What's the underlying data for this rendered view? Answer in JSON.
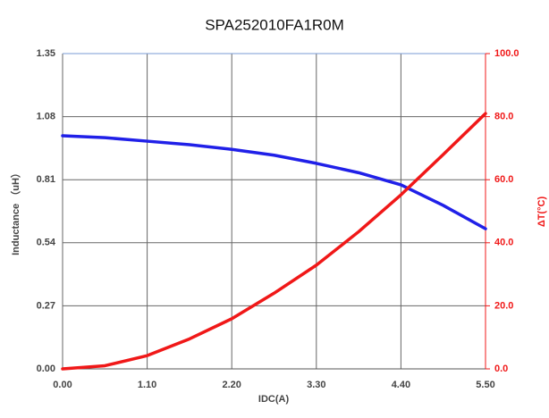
{
  "chart_data": {
    "type": "line",
    "title": "SPA252010FA1R0M",
    "x_label": "IDC(A)",
    "y_label": "Inductance （uH）",
    "y2_label": "ΔT(°C)",
    "x": [
      0,
      0.55,
      1.1,
      1.65,
      2.2,
      2.75,
      3.3,
      3.85,
      4.4,
      4.95,
      5.5
    ],
    "series": [
      {
        "name": "Inductance",
        "color": "#2020e8",
        "axis": "y",
        "values": [
          0.998,
          0.99,
          0.975,
          0.96,
          0.94,
          0.915,
          0.88,
          0.84,
          0.788,
          0.7,
          0.6
        ]
      },
      {
        "name": "ΔT",
        "color": "#f01818",
        "axis": "y2",
        "values": [
          0,
          1,
          4.2,
          9.5,
          15.9,
          24,
          32.9,
          43.5,
          55.2,
          68,
          81
        ]
      }
    ],
    "xlim": [
      0,
      5.5
    ],
    "xticks": [
      {
        "value": 0,
        "label": "0.00"
      },
      {
        "value": 1.1,
        "label": "1.10"
      },
      {
        "value": 2.2,
        "label": "2.20"
      },
      {
        "value": 3.3,
        "label": "3.30"
      },
      {
        "value": 4.4,
        "label": "4.40"
      },
      {
        "value": 5.5,
        "label": "5.50"
      }
    ],
    "ylim": [
      0,
      1.35
    ],
    "yticks": [
      {
        "value": 0,
        "label": "0.00"
      },
      0.27,
      0.54,
      0.81,
      1.08,
      1.35
    ],
    "y2lim": [
      0,
      100
    ],
    "y2ticks": [
      {
        "value": 0,
        "label": "0.0"
      },
      {
        "value": 20,
        "label": "20.0"
      },
      {
        "value": 40,
        "label": "40.0"
      },
      {
        "value": 60,
        "label": "60.0"
      },
      {
        "value": 80,
        "label": "80.0"
      },
      {
        "value": 100,
        "label": "100.0"
      }
    ],
    "y2_color": "#f01818",
    "grid": true
  }
}
